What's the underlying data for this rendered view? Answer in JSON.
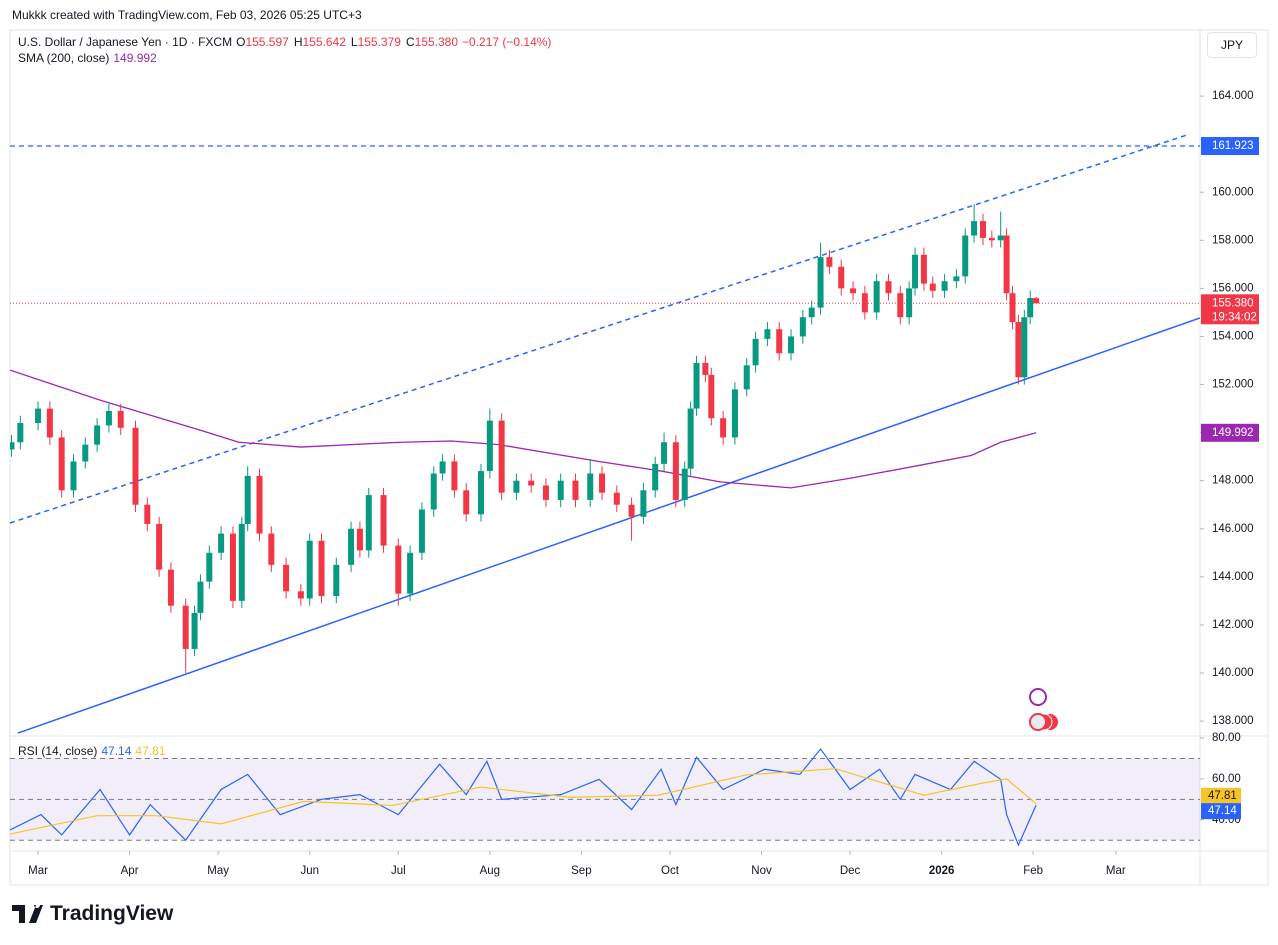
{
  "top_note": "Mukkk created with TradingView.com, Feb 03, 2026 05:25 UTC+3",
  "currency_button": "JPY",
  "footer_logo": "TradingView",
  "chart_data": [
    {
      "type": "candlestick",
      "title": "U.S. Dollar / Japanese Yen · 1D · FXCM",
      "ohlc_text": [
        {
          "label": "O",
          "value": "155.597"
        },
        {
          "label": "H",
          "value": "155.642"
        },
        {
          "label": "L",
          "value": "155.379"
        },
        {
          "label": "C",
          "value": "155.380"
        }
      ],
      "change_text": "−0.217 (−0.14%)",
      "up_color": "#089981",
      "down_color": "#f23645",
      "x": [
        -9,
        -6,
        0,
        4,
        8,
        12,
        16,
        20,
        24,
        28,
        33,
        37,
        41,
        45,
        50,
        53,
        55,
        58,
        62,
        66,
        69,
        71,
        75,
        79,
        84,
        89,
        92,
        96,
        101,
        106,
        109,
        112,
        117,
        122,
        126,
        130,
        134,
        137,
        141,
        145,
        150,
        153,
        157,
        162,
        167,
        172,
        177,
        182,
        187,
        191,
        196,
        201,
        205,
        209,
        212,
        216,
        219,
        221,
        223,
        226,
        228,
        232,
        236,
        240,
        243,
        247,
        251,
        255,
        259,
        262,
        265,
        268,
        272,
        276,
        280,
        284,
        288,
        292,
        295,
        297,
        300,
        303,
        307,
        311,
        314,
        317,
        320,
        323,
        326,
        328,
        330,
        332,
        334,
        336,
        338
      ],
      "open": [
        149.3,
        149.6,
        150.4,
        151.0,
        149.8,
        147.6,
        148.8,
        149.5,
        150.3,
        150.9,
        150.2,
        147.0,
        146.2,
        144.3,
        142.8,
        141.0,
        142.5,
        143.8,
        145.0,
        145.8,
        143.0,
        146.2,
        148.2,
        145.8,
        144.5,
        143.4,
        143.1,
        145.5,
        143.2,
        144.5,
        146.0,
        145.1,
        147.4,
        145.3,
        143.3,
        145.0,
        146.8,
        148.3,
        148.8,
        147.6,
        146.6,
        148.4,
        150.5,
        147.5,
        148.0,
        147.8,
        147.2,
        148.0,
        147.2,
        148.3,
        147.5,
        147.0,
        146.5,
        147.6,
        148.7,
        149.6,
        147.2,
        148.5,
        151.0,
        152.9,
        152.4,
        150.6,
        149.8,
        151.8,
        152.8,
        153.9,
        154.3,
        153.3,
        154.0,
        154.8,
        155.2,
        157.3,
        156.9,
        156.0,
        155.8,
        155.0,
        156.3,
        155.8,
        154.8,
        156.0,
        157.4,
        156.2,
        155.9,
        156.3,
        156.5,
        158.2,
        158.8,
        158.1,
        158.0,
        158.2,
        155.8,
        154.6,
        152.3,
        154.8,
        155.597
      ],
      "high": [
        149.9,
        150.7,
        151.3,
        151.3,
        150.1,
        149.1,
        149.8,
        150.6,
        151.2,
        151.2,
        150.5,
        147.3,
        146.5,
        144.6,
        143.1,
        142.8,
        144.1,
        145.3,
        146.1,
        146.1,
        146.5,
        148.6,
        148.5,
        146.1,
        144.8,
        143.7,
        145.8,
        145.8,
        144.8,
        146.3,
        146.3,
        147.7,
        147.7,
        145.6,
        145.3,
        147.1,
        148.6,
        149.1,
        149.1,
        147.9,
        148.7,
        151.0,
        150.8,
        148.3,
        148.3,
        148.1,
        148.3,
        148.3,
        148.9,
        148.6,
        147.8,
        147.3,
        147.9,
        149.0,
        150.0,
        149.9,
        148.8,
        151.3,
        153.2,
        153.2,
        152.7,
        150.9,
        152.1,
        153.1,
        154.2,
        154.6,
        154.6,
        154.3,
        155.1,
        155.5,
        157.9,
        157.6,
        157.2,
        156.3,
        156.1,
        156.6,
        156.6,
        156.1,
        156.3,
        157.7,
        157.7,
        156.5,
        156.6,
        156.8,
        158.5,
        159.5,
        159.1,
        158.4,
        159.2,
        158.5,
        156.1,
        154.9,
        155.1,
        155.9,
        155.642
      ],
      "low": [
        149.0,
        149.3,
        150.1,
        149.5,
        147.3,
        147.3,
        148.5,
        149.2,
        150.0,
        149.9,
        146.7,
        145.9,
        144.0,
        142.5,
        140.0,
        140.7,
        142.2,
        143.5,
        144.7,
        142.7,
        142.7,
        145.9,
        145.5,
        144.2,
        143.1,
        142.8,
        142.8,
        142.9,
        142.9,
        144.2,
        144.8,
        144.8,
        145.0,
        142.8,
        143.0,
        144.7,
        146.5,
        148.0,
        147.3,
        146.3,
        146.3,
        148.1,
        147.2,
        147.2,
        147.5,
        146.9,
        146.9,
        146.9,
        146.9,
        147.2,
        146.7,
        145.5,
        146.2,
        147.3,
        148.4,
        146.9,
        146.9,
        148.2,
        150.7,
        152.1,
        150.3,
        149.5,
        149.5,
        151.5,
        152.5,
        153.6,
        153.0,
        153.0,
        153.7,
        154.5,
        154.9,
        156.6,
        155.7,
        155.5,
        154.7,
        154.7,
        155.5,
        154.5,
        154.5,
        155.7,
        155.9,
        155.6,
        155.6,
        156.0,
        156.2,
        157.9,
        157.8,
        157.7,
        157.7,
        155.5,
        154.3,
        152.0,
        152.0,
        154.5,
        155.379
      ],
      "close": [
        149.6,
        150.4,
        151.0,
        149.8,
        147.6,
        148.8,
        149.5,
        150.3,
        150.9,
        150.2,
        147.0,
        146.2,
        144.3,
        142.8,
        141.0,
        142.5,
        143.8,
        145.0,
        145.8,
        143.0,
        146.2,
        148.2,
        145.8,
        144.5,
        143.4,
        143.1,
        145.5,
        143.2,
        144.5,
        146.0,
        145.1,
        147.4,
        145.3,
        143.3,
        145.0,
        146.8,
        148.3,
        148.8,
        147.6,
        146.6,
        148.4,
        150.5,
        147.5,
        148.0,
        147.8,
        147.2,
        148.0,
        147.2,
        148.3,
        147.5,
        147.0,
        146.5,
        147.6,
        148.7,
        149.6,
        147.2,
        148.5,
        151.0,
        152.9,
        152.4,
        150.6,
        149.8,
        151.8,
        152.8,
        153.9,
        154.3,
        153.3,
        154.0,
        154.8,
        155.2,
        157.3,
        156.9,
        156.0,
        155.8,
        155.0,
        156.3,
        155.8,
        154.8,
        156.0,
        157.4,
        156.2,
        155.9,
        156.3,
        156.5,
        158.2,
        158.8,
        158.1,
        158.0,
        158.2,
        155.8,
        154.6,
        152.3,
        154.8,
        155.6,
        155.38
      ],
      "overlays": [
        {
          "name": "SMA (200, close)",
          "color": "#9c27b0",
          "x": [
            -9.5,
            21,
            55,
            68,
            89,
            123,
            140,
            156,
            190,
            211,
            231,
            255,
            275,
            299,
            316,
            326,
            338
          ],
          "values": [
            152.6,
            151.35,
            150.1,
            149.6,
            149.4,
            149.6,
            149.65,
            149.5,
            148.8,
            148.4,
            147.95,
            147.7,
            148.1,
            148.65,
            149.05,
            149.6,
            149.992
          ]
        }
      ],
      "trendlines": [
        {
          "color": "#2962ff",
          "dashed": false,
          "x": [
            -6.8,
            393.5
          ],
          "values": [
            137.5,
            154.77
          ]
        },
        {
          "color": "#2962ff",
          "dashed": true,
          "x": [
            -9.5,
            390
          ],
          "values": [
            146.24,
            162.42
          ]
        }
      ],
      "hline": {
        "value": 161.923,
        "color": "#2962ff"
      },
      "last_price": {
        "value": 155.38,
        "label": "155.380",
        "countdown": "19:34:02",
        "color": "#f23645"
      },
      "xlim": [
        -9.5,
        393.5
      ],
      "ylim": [
        137.42,
        166.75
      ],
      "yticks": [
        {
          "value": 138,
          "label": "138.000"
        },
        {
          "value": 140,
          "label": "140.000"
        },
        {
          "value": 142,
          "label": "142.000"
        },
        {
          "value": 144,
          "label": "144.000"
        },
        {
          "value": 146,
          "label": "146.000"
        },
        {
          "value": 148,
          "label": "148.000"
        },
        {
          "value": 150,
          "label": "150.000"
        },
        {
          "value": 152,
          "label": "152.000"
        },
        {
          "value": 154,
          "label": "154.000"
        },
        {
          "value": 156,
          "label": "156.000"
        },
        {
          "value": 158,
          "label": "158.000"
        },
        {
          "value": 160,
          "label": "160.000"
        },
        {
          "value": 164,
          "label": "164.000"
        }
      ]
    },
    {
      "type": "line",
      "title": "RSI (14, close)",
      "series": [
        {
          "color": "#2962ff",
          "x": [
            -9.5,
            1,
            8,
            21,
            31,
            38,
            50,
            62,
            71,
            82,
            96,
            109,
            122,
            136,
            145,
            152,
            157,
            177,
            190,
            201,
            211,
            216,
            223,
            232,
            246,
            258,
            265,
            275,
            285,
            292,
            297,
            309,
            317,
            326,
            328,
            332,
            338
          ],
          "values": [
            35,
            42.5,
            32.6,
            54.8,
            32.6,
            47.4,
            30,
            54.8,
            62.2,
            42.5,
            50,
            52.3,
            42.5,
            67.2,
            52.3,
            68.6,
            50,
            52.3,
            59.8,
            45,
            64.7,
            47.4,
            70.6,
            54.8,
            64.7,
            62.2,
            74.6,
            54.8,
            64.7,
            50,
            62.2,
            54.8,
            68.6,
            59.8,
            42.5,
            27.6,
            47.14
          ]
        },
        {
          "color": "#f7c325",
          "x": [
            -9.5,
            20,
            40,
            62,
            90,
            120,
            150,
            180,
            210,
            240,
            270,
            300,
            320,
            328,
            338
          ],
          "values": [
            33,
            42,
            42,
            38,
            49,
            47,
            56,
            51,
            52,
            62,
            65,
            52,
            58,
            60,
            47.81
          ]
        }
      ],
      "bands": [
        30,
        50,
        70
      ],
      "band_fill": "#7e57c2",
      "xlim": [
        -9.5,
        393.5
      ],
      "ylim": [
        25.2,
        80.5
      ],
      "yticks": [
        {
          "value": 80,
          "label": "80.00"
        },
        {
          "value": 60,
          "label": "60.00"
        },
        {
          "value": 40,
          "label": "40.00"
        }
      ],
      "xticks": [
        {
          "value": 0,
          "label": "Mar"
        },
        {
          "value": 31,
          "label": "Apr"
        },
        {
          "value": 61,
          "label": "May"
        },
        {
          "value": 92,
          "label": "Jun"
        },
        {
          "value": 122,
          "label": "Jul"
        },
        {
          "value": 153,
          "label": "Aug"
        },
        {
          "value": 184,
          "label": "Sep"
        },
        {
          "value": 214,
          "label": "Oct"
        },
        {
          "value": 245,
          "label": "Nov"
        },
        {
          "value": 275,
          "label": "Dec"
        },
        {
          "value": 306,
          "label": "2026"
        },
        {
          "value": 337,
          "label": "Feb"
        },
        {
          "value": 365,
          "label": "Mar"
        }
      ]
    }
  ]
}
